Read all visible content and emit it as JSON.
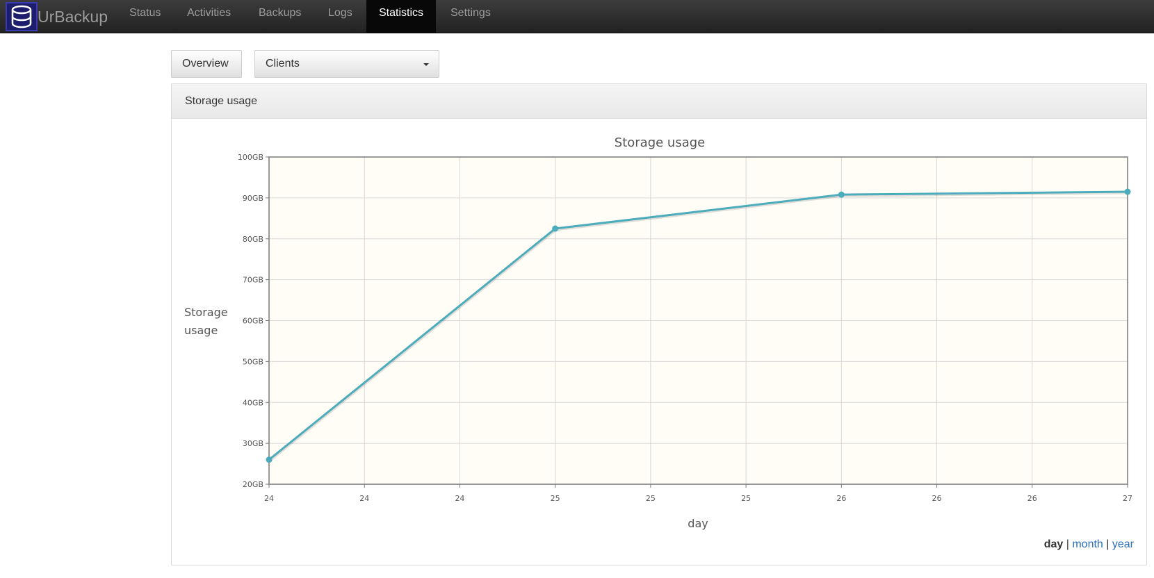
{
  "navbar": {
    "brand": "UrBackup",
    "items": [
      {
        "label": "Status",
        "active": false
      },
      {
        "label": "Activities",
        "active": false
      },
      {
        "label": "Backups",
        "active": false
      },
      {
        "label": "Logs",
        "active": false
      },
      {
        "label": "Statistics",
        "active": true
      },
      {
        "label": "Settings",
        "active": false
      }
    ]
  },
  "toolbar": {
    "overview_label": "Overview",
    "clients_select_value": "Clients"
  },
  "panel": {
    "heading": "Storage usage"
  },
  "range": {
    "current": "day",
    "sep": "|",
    "month": "month",
    "year": "year"
  },
  "chart_data": {
    "type": "line",
    "title": "Storage usage",
    "xlabel": "day",
    "ylabel_lines": [
      "Storage",
      "usage"
    ],
    "x_tick_labels": [
      "24",
      "24",
      "24",
      "25",
      "25",
      "25",
      "26",
      "26",
      "26",
      "27"
    ],
    "y_tick_labels": [
      "20GB",
      "30GB",
      "40GB",
      "50GB",
      "60GB",
      "70GB",
      "80GB",
      "90GB",
      "100GB"
    ],
    "ylim": [
      20,
      100
    ],
    "y_unit": "GB",
    "x_range": [
      0,
      9
    ],
    "points": [
      {
        "x": 0,
        "y": 26
      },
      {
        "x": 3,
        "y": 82.5
      },
      {
        "x": 6,
        "y": 90.8
      },
      {
        "x": 9,
        "y": 91.5
      }
    ],
    "grid": true,
    "colors": {
      "line": "#4cacbc",
      "plot_bg": "#fffdf6",
      "grid": "#d8d8d8",
      "border": "#999999"
    }
  }
}
